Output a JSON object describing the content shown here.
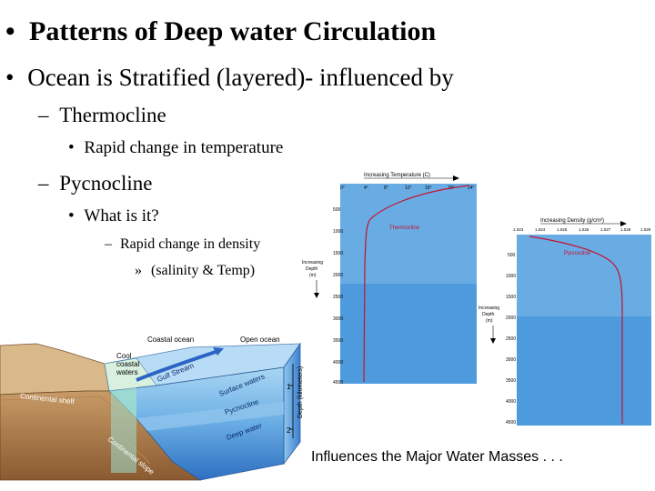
{
  "slide": {
    "title": "Patterns of Deep water Circulation",
    "bullets": {
      "main": "Ocean is Stratified (layered)- influenced by",
      "thermocline": "Thermocline",
      "thermocline_detail": "Rapid change in temperature",
      "pycnocline": "Pycnocline",
      "pycnocline_q": "What is it?",
      "pycnocline_a": "Rapid change in density",
      "pycnocline_a2": "(salinity & Temp)"
    },
    "bullet_glyphs": {
      "l1": "•",
      "l2": "–",
      "l3": "•",
      "l4": "–",
      "l5": "»"
    },
    "caption": "Influences the Major Water Masses . . ."
  },
  "cross_section": {
    "labels": {
      "coastal_ocean": "Coastal ocean",
      "open_ocean": "Open ocean",
      "cool": "Cool",
      "coastal": "coastal",
      "waters": "waters",
      "gulf_stream": "Gulf Stream",
      "surface_waters": "Surface waters",
      "pycnocline": "Pycnocline",
      "deep_water": "Deep water",
      "continental_shelf": "Continental shelf",
      "continental_slope": "Continental slope",
      "depth_axis": "Depth (kilometers)",
      "tick_1": "1",
      "tick_2": "2"
    }
  },
  "temperature_profile": {
    "title": "Increasing Temperature (C)",
    "x_ticks": [
      "0°",
      "4°",
      "8°",
      "12°",
      "16°",
      "20°",
      "24°"
    ],
    "y_ticks": [
      "500",
      "1000",
      "1500",
      "2000",
      "2500",
      "3000",
      "3500",
      "4000",
      "4500"
    ],
    "ylabel": [
      "Increasing",
      "Depth",
      "(m)"
    ],
    "layer_label": "Thermocline"
  },
  "density_profile": {
    "title": "Increasing Density (g/cm³)",
    "x_ticks": [
      "1.023",
      "1.024",
      "1.025",
      "1.026",
      "1.027",
      "1.028",
      "1.029"
    ],
    "y_ticks": [
      "500",
      "1000",
      "1500",
      "2000",
      "2500",
      "3000",
      "3500",
      "4000",
      "4500"
    ],
    "ylabel": [
      "Increasing",
      "Depth",
      "(m)"
    ],
    "layer_label": "Pycnocline"
  },
  "colors": {
    "ocean_light": "#b8dcf5",
    "ocean_deep": "#5aa3df",
    "profile_line": "#c8102e"
  }
}
